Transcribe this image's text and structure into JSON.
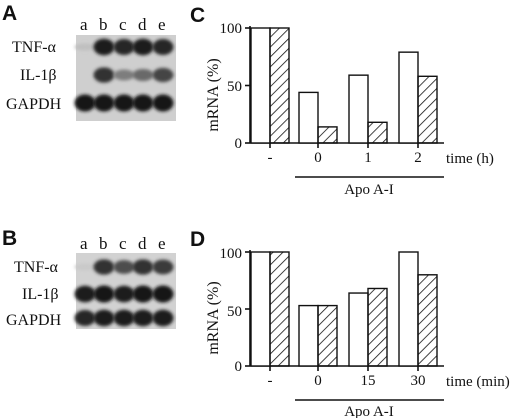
{
  "panels": {
    "A": {
      "letter": "A",
      "lanes": [
        "a",
        "b",
        "c",
        "d",
        "e"
      ],
      "rows": [
        {
          "label": "TNF-α",
          "intensity": [
            0.1,
            0.95,
            0.9,
            0.95,
            0.9
          ]
        },
        {
          "label": "IL-1β",
          "intensity": [
            0.0,
            0.85,
            0.45,
            0.55,
            0.75
          ]
        },
        {
          "label": "GAPDH",
          "intensity": [
            1.0,
            1.0,
            1.0,
            1.0,
            1.0
          ]
        }
      ]
    },
    "B": {
      "letter": "B",
      "lanes": [
        "a",
        "b",
        "c",
        "d",
        "e"
      ],
      "rows": [
        {
          "label": "TNF-α",
          "intensity": [
            0.05,
            0.85,
            0.7,
            0.85,
            0.8
          ]
        },
        {
          "label": "IL-1β",
          "intensity": [
            0.95,
            1.0,
            0.95,
            1.0,
            1.0
          ]
        },
        {
          "label": "GAPDH",
          "intensity": [
            0.9,
            0.95,
            0.95,
            0.95,
            0.95
          ]
        }
      ]
    }
  },
  "chart_data": [
    {
      "id": "C",
      "letter": "C",
      "type": "bar",
      "ylabel": "mRNA (%)",
      "xlabel": "time (h)",
      "group_label": "Apo A-I",
      "ylim": [
        0,
        100
      ],
      "yticks": [
        "0",
        "50",
        "100"
      ],
      "categories": [
        "-",
        "0",
        "1",
        "2"
      ],
      "series": [
        {
          "fill": "open",
          "values": [
            100,
            44,
            59,
            79
          ]
        },
        {
          "fill": "hatched",
          "values": [
            100,
            14,
            18,
            58
          ]
        }
      ]
    },
    {
      "id": "D",
      "letter": "D",
      "type": "bar",
      "ylabel": "mRNA (%)",
      "xlabel": "time (min)",
      "group_label": "Apo A-I",
      "ylim": [
        0,
        100
      ],
      "yticks": [
        "0",
        "50",
        "100"
      ],
      "categories": [
        "-",
        "0",
        "15",
        "30"
      ],
      "series": [
        {
          "fill": "open",
          "values": [
            100,
            53,
            64,
            100
          ]
        },
        {
          "fill": "hatched",
          "values": [
            100,
            53,
            68,
            80
          ]
        }
      ]
    }
  ]
}
